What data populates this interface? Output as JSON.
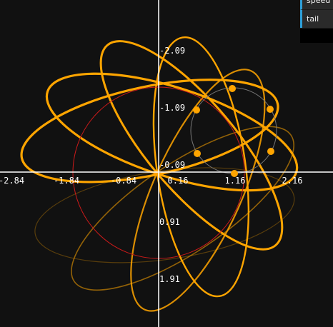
{
  "axes": {
    "x_ticks": [
      "-2.84",
      "-1.84",
      "-0.84",
      "0.16",
      "1.16",
      "2.16"
    ],
    "y_ticks": [
      "-2.09",
      "-1.09",
      "-0.09",
      "0.91",
      "1.91"
    ]
  },
  "panel": {
    "speed_label": "speed",
    "tail_label": "tail"
  },
  "colors": {
    "background": "#111111",
    "axis": "#ffffff",
    "trail": "#ffa500",
    "circle_large": "#cc1a1a",
    "circle_small": "#777777",
    "panel_accent": "#2e9fd8"
  }
}
